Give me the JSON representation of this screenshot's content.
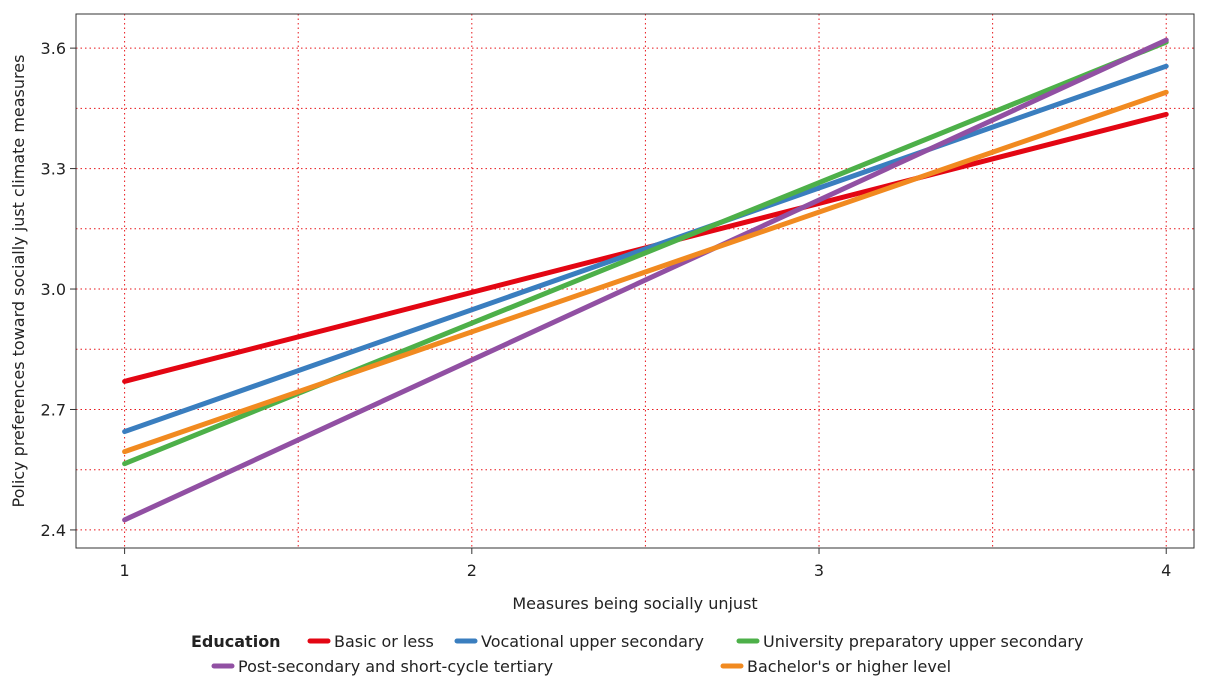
{
  "chart_data": {
    "type": "line",
    "xlabel": "Measures being socially unjust",
    "ylabel": "Policy preferences toward socially just climate measures",
    "xlim": [
      0.86,
      4.08
    ],
    "ylim": [
      2.355,
      3.685
    ],
    "x_ticks": [
      1,
      2,
      3,
      4
    ],
    "x_tick_labels": [
      "1",
      "2",
      "3",
      "4"
    ],
    "y_ticks": [
      2.4,
      2.7,
      3.0,
      3.3,
      3.6
    ],
    "y_tick_labels": [
      "2.4",
      "2.7",
      "3.0",
      "3.3",
      "3.6"
    ],
    "grid": true,
    "grid_color": "#e8161b",
    "legend": {
      "position": "bottom",
      "title": "Education"
    },
    "x": [
      1,
      4
    ],
    "series": [
      {
        "name": "Basic or less",
        "color": "#e30613",
        "values": [
          2.77,
          3.435
        ]
      },
      {
        "name": "Vocational upper secondary",
        "color": "#3a7ebf",
        "values": [
          2.645,
          3.555
        ]
      },
      {
        "name": "University preparatory upper secondary",
        "color": "#4db049",
        "values": [
          2.565,
          3.615
        ]
      },
      {
        "name": "Post-secondary and short-cycle tertiary",
        "color": "#9150a3",
        "values": [
          2.425,
          3.62
        ]
      },
      {
        "name": "Bachelor's or higher level",
        "color": "#f18a20",
        "values": [
          2.595,
          3.49
        ]
      }
    ]
  }
}
